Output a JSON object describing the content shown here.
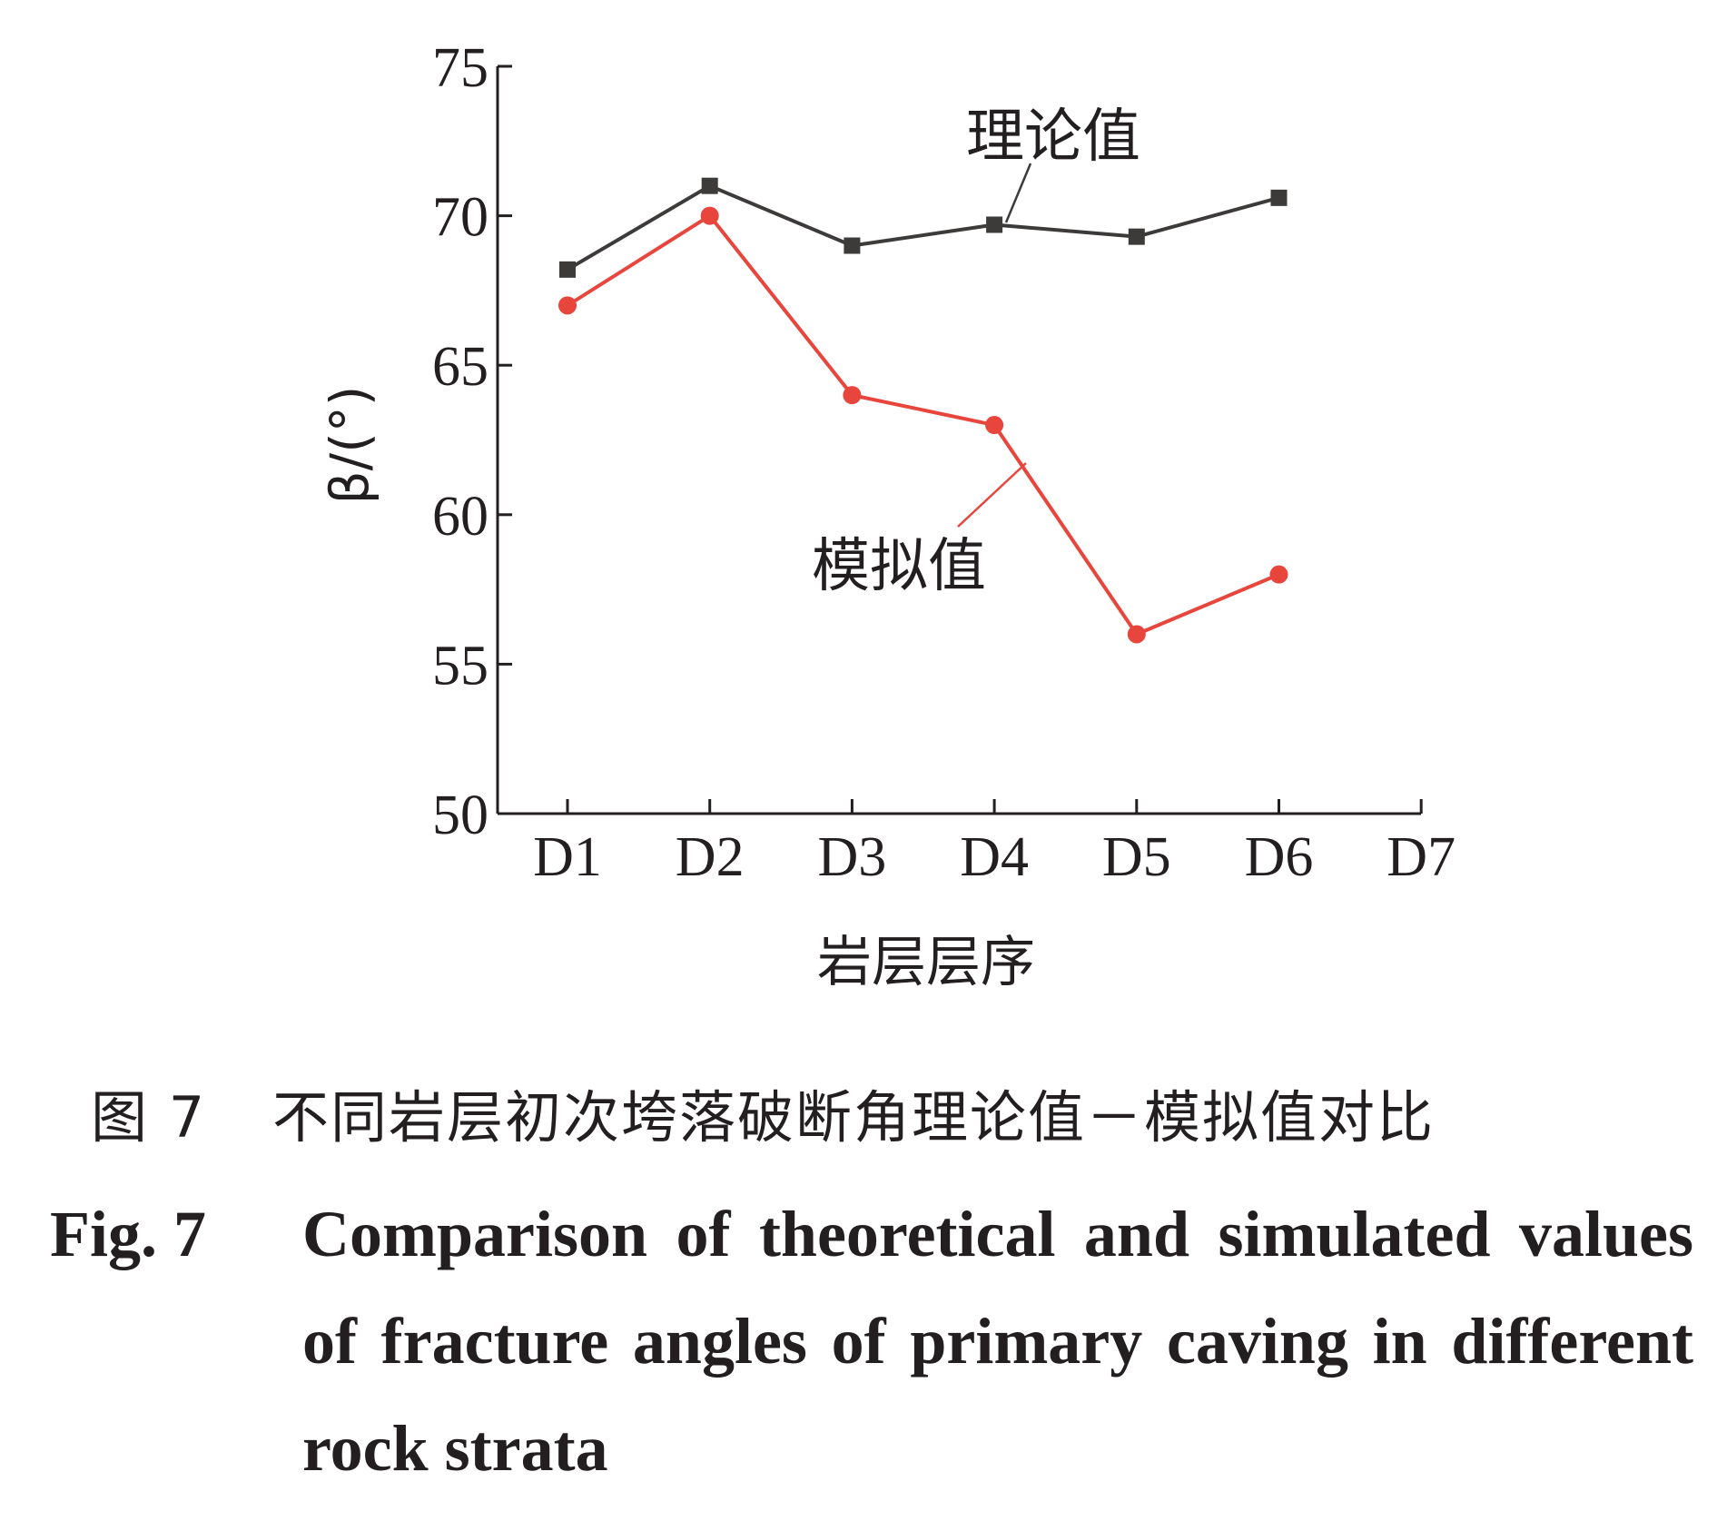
{
  "chart_data": {
    "type": "line",
    "categories": [
      "D1",
      "D2",
      "D3",
      "D4",
      "D5",
      "D6",
      "D7"
    ],
    "series": [
      {
        "name": "理论值",
        "marker": "square",
        "color": "#3d3a3a",
        "values": [
          68.2,
          71.0,
          69.0,
          69.7,
          69.3,
          70.6,
          null
        ]
      },
      {
        "name": "模拟值",
        "marker": "circle",
        "color": "#e8453c",
        "values": [
          67.0,
          70.0,
          64.0,
          63.0,
          56.0,
          58.0,
          null
        ]
      }
    ],
    "xlabel": "岩层层序",
    "ylabel": "β/(°)",
    "ylim": [
      50,
      75
    ],
    "yticks": [
      50,
      55,
      60,
      65,
      70,
      75
    ],
    "grid": false
  },
  "caption": {
    "cn_number": "图 7",
    "cn_text": "不同岩层初次垮落破断角理论值－模拟值对比",
    "en_number": "Fig. 7",
    "en_text": "Comparison of theoretical and simulated values of fracture angles of primary caving in different rock strata"
  }
}
